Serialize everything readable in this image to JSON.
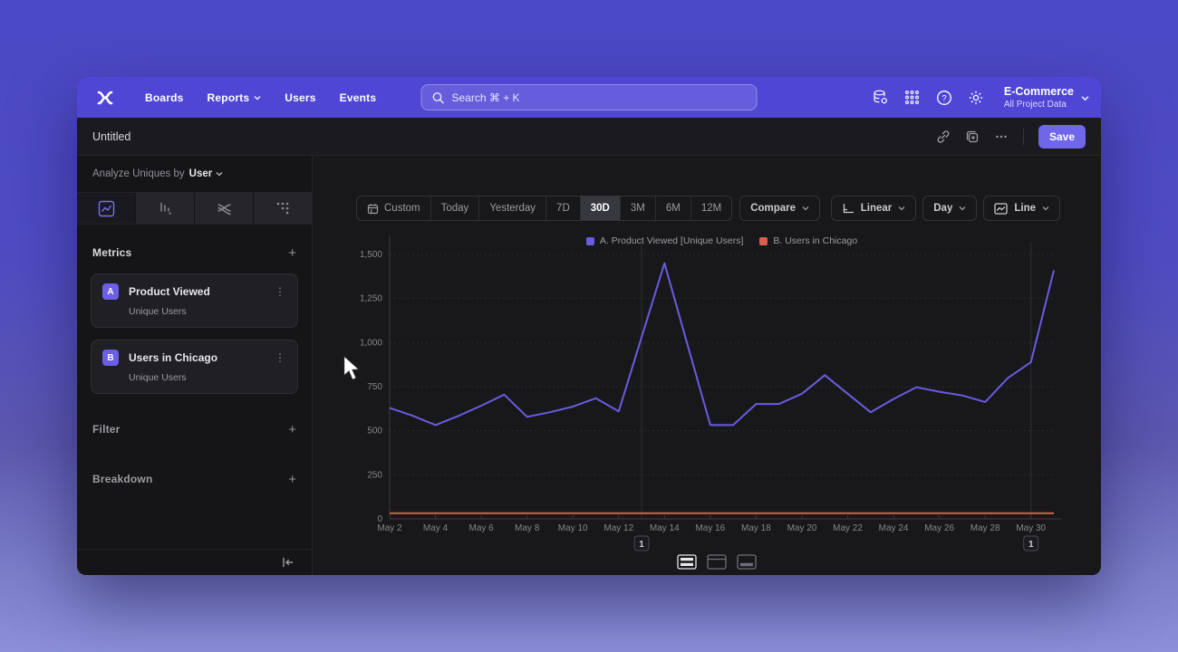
{
  "nav": {
    "items": [
      "Boards",
      "Reports",
      "Users",
      "Events"
    ],
    "search_placeholder": "Search  ⌘ + K",
    "project": {
      "name": "E-Commerce",
      "subtitle": "All Project Data"
    }
  },
  "report_header": {
    "title": "Untitled",
    "save_label": "Save"
  },
  "sidebar": {
    "analyze_label": "Analyze Uniques by",
    "analyze_value": "User",
    "metrics_title": "Metrics",
    "metrics": [
      {
        "badge": "A",
        "name": "Product Viewed",
        "subtitle": "Unique Users"
      },
      {
        "badge": "B",
        "name": "Users in Chicago",
        "subtitle": "Unique Users"
      }
    ],
    "filter_title": "Filter",
    "breakdown_title": "Breakdown"
  },
  "controls": {
    "ranges": [
      "Custom",
      "Today",
      "Yesterday",
      "7D",
      "30D",
      "3M",
      "6M",
      "12M"
    ],
    "selected_range": "30D",
    "compare_label": "Compare",
    "scale_label": "Linear",
    "interval_label": "Day",
    "chart_type_label": "Line"
  },
  "chart_data": {
    "type": "line",
    "x": [
      "May 2",
      "May 3",
      "May 4",
      "May 5",
      "May 6",
      "May 7",
      "May 8",
      "May 9",
      "May 10",
      "May 11",
      "May 12",
      "May 13",
      "May 14",
      "May 15",
      "May 16",
      "May 17",
      "May 18",
      "May 19",
      "May 20",
      "May 21",
      "May 22",
      "May 23",
      "May 24",
      "May 25",
      "May 26",
      "May 27",
      "May 28",
      "May 29",
      "May 30",
      "May 31"
    ],
    "x_tick_every": 2,
    "series": [
      {
        "name": "A. Product Viewed [Unique Users]",
        "color": "#6a5be0",
        "values": [
          630,
          585,
          532,
          584,
          642,
          705,
          579,
          605,
          637,
          684,
          610,
          1030,
          1450,
          990,
          532,
          532,
          652,
          652,
          710,
          815,
          710,
          605,
          680,
          747,
          721,
          700,
          663,
          800,
          889,
          1410
        ]
      },
      {
        "name": "B. Users in Chicago",
        "color": "#d65f4d",
        "values": [
          32,
          32,
          32,
          32,
          32,
          32,
          32,
          32,
          32,
          32,
          32,
          32,
          32,
          32,
          32,
          32,
          32,
          32,
          32,
          32,
          32,
          32,
          32,
          32,
          32,
          32,
          32,
          32,
          32,
          32
        ]
      }
    ],
    "ylim": [
      0,
      1500
    ],
    "yticks": [
      0,
      250,
      500,
      750,
      1000,
      1250,
      1500
    ],
    "grid": true,
    "legend_position": "top",
    "annotations": [
      {
        "x_index": 11,
        "label": "1"
      },
      {
        "x_index": 28,
        "label": "1"
      }
    ]
  },
  "colors": {
    "accent": "#6f66e9",
    "nav": "#4f46d6",
    "series_a": "#6a5be0",
    "series_b": "#d65f4d"
  }
}
